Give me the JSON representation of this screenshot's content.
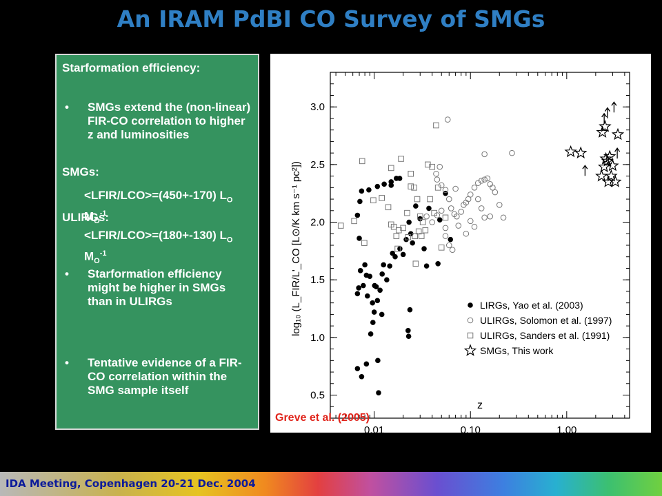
{
  "slide": {
    "title": "An IRAM PdBI CO Survey of SMGs",
    "footer": "IDA Meeting, Copenhagen 20-21 Dec. 2004",
    "credit": "Greve et al. (2005)"
  },
  "textbox": {
    "heading": "Starformation efficiency:",
    "bullet1": "SMGs extend the (non-linear) FIR-CO correlation to higher z and luminosities",
    "smgs_label": "SMGs:",
    "smgs_ratio": "<LFIR/LCO>=(450+-170) L",
    "ulirgs_label": "ULIRGs:",
    "ulirgs_ratio": "<LFIR/LCO>=(180+-130) L",
    "unit_sub": "O",
    "unit_m": " M",
    "unit_sup": "-1",
    "bullet2": "Starformation efficiency might be higher in SMGs than in ULIRGs",
    "bullet3": "Tentative evidence of a FIR-CO correlation within the SMG sample itself",
    "bullet_char": "•"
  },
  "chart_data": {
    "type": "scatter",
    "xlabel": "z",
    "ylabel": "log₁₀ (L_FIR/L'_CO [L⊙/K km s⁻¹ pc²])",
    "xscale": "log",
    "xlim": [
      0.0035,
      4.5
    ],
    "ylim": [
      0.3,
      3.3
    ],
    "xticks": [
      0.01,
      0.1,
      1.0
    ],
    "xtick_labels": [
      "0.01",
      "0.10",
      "1.00"
    ],
    "yticks": [
      0.5,
      1.0,
      1.5,
      2.0,
      2.5,
      3.0
    ],
    "ytick_labels": [
      "0.5",
      "1.0",
      "1.5",
      "2.0",
      "2.5",
      "3.0"
    ],
    "legend_position": "bottom-right",
    "series": [
      {
        "name": "LIRGs, Yao et al. (2003)",
        "marker": "filled-circle",
        "points": [
          [
            0.0067,
            0.73
          ],
          [
            0.0074,
            0.66
          ],
          [
            0.0083,
            0.77
          ],
          [
            0.0111,
            0.52
          ],
          [
            0.0109,
            0.8
          ],
          [
            0.0067,
            1.38
          ],
          [
            0.0069,
            1.43
          ],
          [
            0.0072,
            1.58
          ],
          [
            0.007,
            1.86
          ],
          [
            0.0067,
            2.06
          ],
          [
            0.0071,
            2.18
          ],
          [
            0.0074,
            2.27
          ],
          [
            0.0077,
            1.45
          ],
          [
            0.008,
            1.63
          ],
          [
            0.0085,
            1.36
          ],
          [
            0.009,
            1.53
          ],
          [
            0.0096,
            1.3
          ],
          [
            0.01,
            1.22
          ],
          [
            0.0101,
            1.45
          ],
          [
            0.0105,
            1.44
          ],
          [
            0.0108,
            1.32
          ],
          [
            0.0097,
            1.13
          ],
          [
            0.0092,
            1.03
          ],
          [
            0.0115,
            1.41
          ],
          [
            0.0121,
            1.55
          ],
          [
            0.0125,
            1.63
          ],
          [
            0.0135,
            1.5
          ],
          [
            0.0145,
            1.62
          ],
          [
            0.0155,
            1.73
          ],
          [
            0.0165,
            1.7
          ],
          [
            0.0185,
            1.77
          ],
          [
            0.02,
            1.72
          ],
          [
            0.0215,
            1.85
          ],
          [
            0.023,
            2.0
          ],
          [
            0.024,
            1.9
          ],
          [
            0.025,
            1.82
          ],
          [
            0.027,
            2.14
          ],
          [
            0.03,
            2.03
          ],
          [
            0.033,
            1.77
          ],
          [
            0.037,
            2.12
          ],
          [
            0.048,
            2.02
          ],
          [
            0.055,
            2.25
          ],
          [
            0.062,
            1.85
          ],
          [
            0.046,
            1.64
          ],
          [
            0.035,
            1.62
          ],
          [
            0.0235,
            1.24
          ],
          [
            0.0225,
            1.06
          ],
          [
            0.0228,
            1.01
          ],
          [
            0.0088,
            2.28
          ],
          [
            0.0108,
            2.31
          ],
          [
            0.0127,
            2.33
          ],
          [
            0.015,
            2.35
          ],
          [
            0.017,
            2.38
          ],
          [
            0.0184,
            2.38
          ],
          [
            0.015,
            2.32
          ],
          [
            0.0083,
            1.54
          ],
          [
            0.012,
            1.2
          ]
        ]
      },
      {
        "name": "ULIRGs, Solomon et al. (1997)",
        "marker": "open-circle",
        "points": [
          [
            0.058,
            2.89
          ],
          [
            0.044,
            2.42
          ],
          [
            0.048,
            2.48
          ],
          [
            0.045,
            2.37
          ],
          [
            0.05,
            2.32
          ],
          [
            0.055,
            2.28
          ],
          [
            0.06,
            2.2
          ],
          [
            0.063,
            2.12
          ],
          [
            0.068,
            2.07
          ],
          [
            0.072,
            2.05
          ],
          [
            0.08,
            2.09
          ],
          [
            0.085,
            2.15
          ],
          [
            0.09,
            2.17
          ],
          [
            0.095,
            2.2
          ],
          [
            0.1,
            2.24
          ],
          [
            0.11,
            2.3
          ],
          [
            0.12,
            2.34
          ],
          [
            0.13,
            2.36
          ],
          [
            0.14,
            2.37
          ],
          [
            0.15,
            2.38
          ],
          [
            0.16,
            2.33
          ],
          [
            0.17,
            2.3
          ],
          [
            0.18,
            2.26
          ],
          [
            0.2,
            2.15
          ],
          [
            0.12,
            2.2
          ],
          [
            0.13,
            2.12
          ],
          [
            0.14,
            2.04
          ],
          [
            0.16,
            2.05
          ],
          [
            0.22,
            2.04
          ],
          [
            0.27,
            2.6
          ],
          [
            0.14,
            2.59
          ],
          [
            0.05,
            2.1
          ],
          [
            0.055,
            1.95
          ],
          [
            0.06,
            1.8
          ],
          [
            0.065,
            1.76
          ],
          [
            0.04,
            2.0
          ],
          [
            0.035,
            2.05
          ],
          [
            0.045,
            2.06
          ],
          [
            0.055,
            1.88
          ],
          [
            0.075,
            1.97
          ],
          [
            0.09,
            1.9
          ],
          [
            0.1,
            2.01
          ],
          [
            0.11,
            1.96
          ],
          [
            0.07,
            2.29
          ]
        ]
      },
      {
        "name": "ULIRGs, Sanders et al. (1991)",
        "marker": "open-square",
        "points": [
          [
            0.0045,
            1.97
          ],
          [
            0.0062,
            2.01
          ],
          [
            0.0079,
            1.82
          ],
          [
            0.0075,
            2.53
          ],
          [
            0.0098,
            2.19
          ],
          [
            0.012,
            2.21
          ],
          [
            0.014,
            2.13
          ],
          [
            0.015,
            1.98
          ],
          [
            0.016,
            1.96
          ],
          [
            0.017,
            1.88
          ],
          [
            0.0175,
            1.77
          ],
          [
            0.018,
            1.93
          ],
          [
            0.02,
            1.95
          ],
          [
            0.022,
            2.08
          ],
          [
            0.024,
            2.31
          ],
          [
            0.026,
            2.3
          ],
          [
            0.028,
            2.2
          ],
          [
            0.03,
            2.05
          ],
          [
            0.032,
            2.0
          ],
          [
            0.034,
            1.93
          ],
          [
            0.036,
            2.5
          ],
          [
            0.038,
            2.2
          ],
          [
            0.042,
            2.08
          ],
          [
            0.046,
            2.3
          ],
          [
            0.05,
            1.78
          ],
          [
            0.055,
            2.04
          ],
          [
            0.015,
            2.47
          ],
          [
            0.019,
            2.55
          ],
          [
            0.024,
            2.42
          ],
          [
            0.027,
            1.64
          ],
          [
            0.029,
            1.92
          ],
          [
            0.031,
            1.88
          ],
          [
            0.04,
            2.48
          ],
          [
            0.044,
            2.84
          ],
          [
            0.0225,
            1.87
          ],
          [
            0.0265,
            1.88
          ]
        ]
      },
      {
        "name": "SMGs, This work",
        "marker": "open-star",
        "points": [
          [
            1.1,
            2.61
          ],
          [
            1.4,
            2.6
          ],
          [
            2.3,
            2.4
          ],
          [
            2.35,
            2.78
          ],
          [
            2.5,
            2.83
          ],
          [
            2.45,
            2.48
          ],
          [
            2.55,
            2.55
          ],
          [
            2.65,
            2.53
          ],
          [
            2.8,
            2.57
          ],
          [
            2.9,
            2.4
          ],
          [
            3.0,
            2.49
          ],
          [
            3.2,
            2.35
          ],
          [
            3.4,
            2.76
          ],
          [
            2.7,
            2.35
          ]
        ]
      }
    ],
    "lower_limits": [
      [
        1.55,
        2.45
      ],
      [
        2.45,
        2.9
      ],
      [
        2.65,
        2.95
      ],
      [
        3.1,
        3.0
      ],
      [
        3.35,
        2.6
      ]
    ]
  }
}
